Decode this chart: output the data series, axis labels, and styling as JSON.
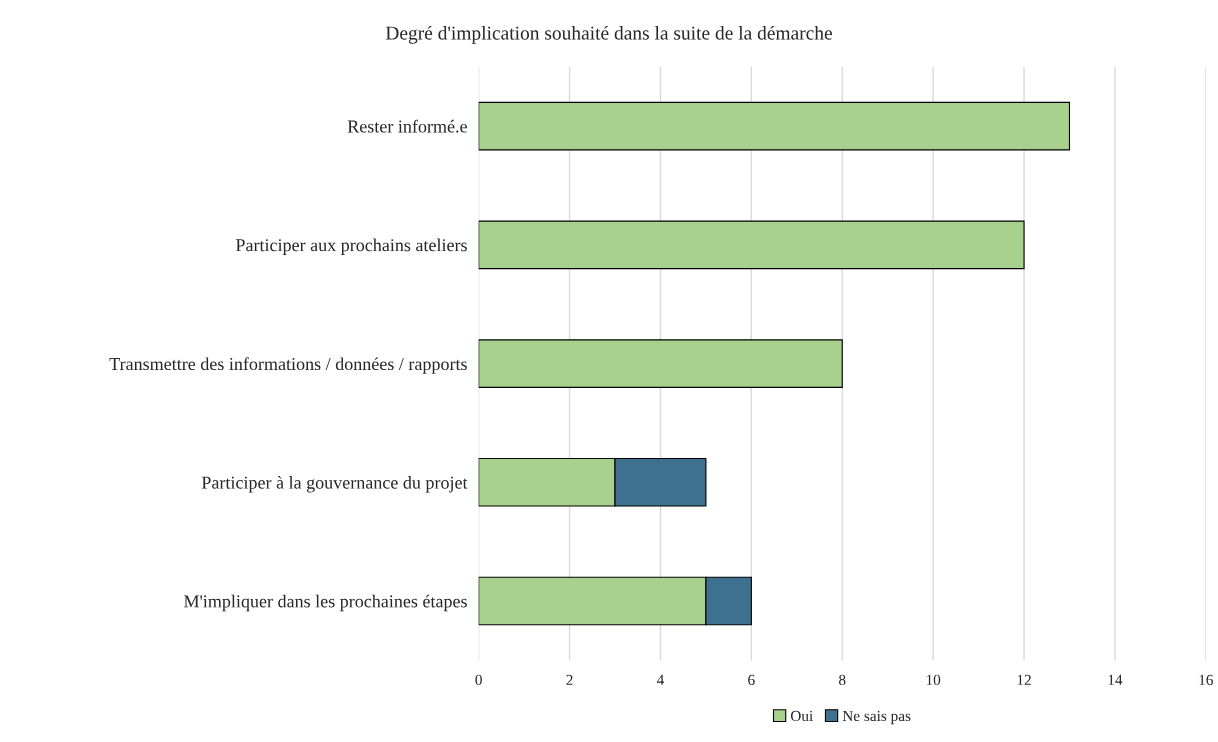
{
  "chart_data": {
    "type": "bar",
    "orientation": "horizontal",
    "stacked": true,
    "title": "Degré d'implication souhaité dans la suite de la démarche",
    "categories": [
      "Rester informé.e",
      "Participer aux prochains ateliers",
      "Transmettre des informations / données / rapports",
      "Participer à la gouvernance du projet",
      "M'impliquer dans les prochaines étapes"
    ],
    "series": [
      {
        "name": "Oui",
        "color": "#a9d18e",
        "values": [
          13,
          12,
          8,
          3,
          5
        ]
      },
      {
        "name": "Ne sais pas",
        "color": "#3e7190",
        "values": [
          null,
          null,
          null,
          2,
          1
        ]
      }
    ],
    "xlim": [
      0,
      16
    ],
    "xticks": [
      0,
      2,
      4,
      6,
      8,
      10,
      12,
      14,
      16
    ],
    "grid": "x",
    "legend": "bottom"
  }
}
